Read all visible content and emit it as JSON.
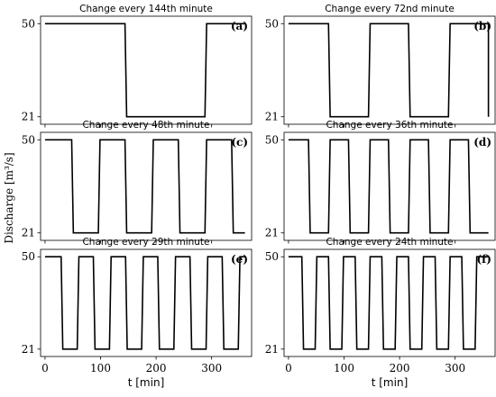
{
  "figure": {
    "ylabel": "Discharge [m³/s]",
    "xlabel": "t [min]"
  },
  "chart_data": [
    {
      "type": "line",
      "title": "Change every 144th minute",
      "panel_label": "(a)",
      "period_min": 144,
      "x_range": [
        0,
        360
      ],
      "ylim": [
        21,
        50
      ],
      "yticks": [
        21,
        50
      ],
      "xticks": [
        0,
        100,
        200,
        300
      ],
      "series": [
        {
          "values": [
            50,
            21,
            50,
            21
          ]
        }
      ]
    },
    {
      "type": "line",
      "title": "Change every 72nd minute",
      "panel_label": "(b)",
      "period_min": 72,
      "x_range": [
        0,
        360
      ],
      "ylim": [
        21,
        50
      ],
      "yticks": [
        21,
        50
      ],
      "xticks": [
        0,
        100,
        200,
        300
      ],
      "series": [
        {
          "values": [
            50,
            21,
            50,
            21,
            50,
            21
          ]
        }
      ]
    },
    {
      "type": "line",
      "title": "Change every 48th minute",
      "panel_label": "(c)",
      "period_min": 48,
      "x_range": [
        0,
        360
      ],
      "ylim": [
        21,
        50
      ],
      "yticks": [
        21,
        50
      ],
      "xticks": [
        0,
        100,
        200,
        300
      ],
      "series": [
        {
          "values": [
            50,
            21,
            50,
            21,
            50,
            21,
            50,
            21
          ]
        }
      ]
    },
    {
      "type": "line",
      "title": "Change every 36th minute",
      "panel_label": "(d)",
      "period_min": 36,
      "x_range": [
        0,
        360
      ],
      "ylim": [
        21,
        50
      ],
      "yticks": [
        21,
        50
      ],
      "xticks": [
        0,
        100,
        200,
        300
      ],
      "series": [
        {
          "values": [
            50,
            21,
            50,
            21,
            50,
            21,
            50,
            21,
            50,
            21
          ]
        }
      ]
    },
    {
      "type": "line",
      "title": "Change every 29th minute",
      "panel_label": "(e)",
      "period_min": 29,
      "x_range": [
        0,
        360
      ],
      "ylim": [
        21,
        50
      ],
      "yticks": [
        21,
        50
      ],
      "xticks": [
        0,
        100,
        200,
        300
      ],
      "series": [
        {
          "values": [
            50,
            21,
            50,
            21,
            50,
            21,
            50,
            21,
            50,
            21,
            50,
            21,
            50
          ]
        }
      ]
    },
    {
      "type": "line",
      "title": "Change every 24th minute",
      "panel_label": "(f)",
      "period_min": 24,
      "x_range": [
        0,
        360
      ],
      "ylim": [
        21,
        50
      ],
      "yticks": [
        21,
        50
      ],
      "xticks": [
        0,
        100,
        200,
        300
      ],
      "series": [
        {
          "values": [
            50,
            21,
            50,
            21,
            50,
            21,
            50,
            21,
            50,
            21,
            50,
            21,
            50,
            21,
            50
          ]
        }
      ]
    }
  ]
}
